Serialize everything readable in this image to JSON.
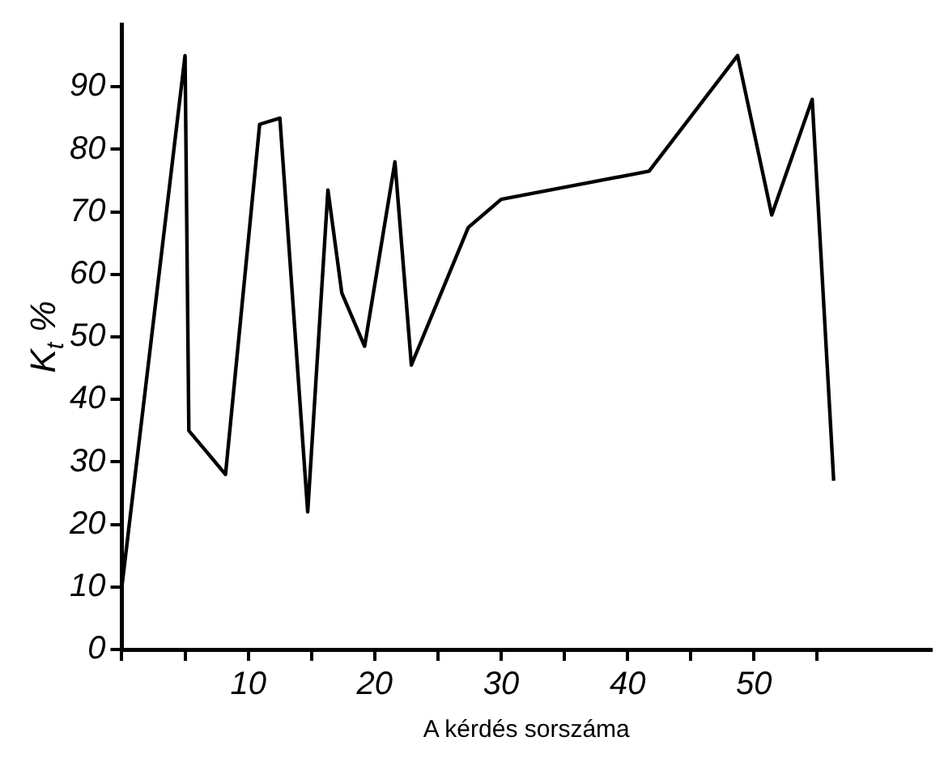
{
  "chart_data": {
    "type": "line",
    "xlabel": "A kérdés sorszáma",
    "ylabel": "K$_{t}$ %",
    "x": [
      0,
      5,
      5.3,
      8.2,
      10.9,
      12.5,
      14.7,
      16.3,
      17.4,
      19.2,
      21.6,
      22.9,
      27.4,
      30,
      41.7,
      48.7,
      51.4,
      54.6,
      56.3
    ],
    "series": [
      {
        "color": "#000000",
        "values": [
          10,
          95,
          35,
          28,
          84,
          85,
          22,
          73.5,
          57,
          48.5,
          78,
          45.5,
          67.5,
          72,
          76.5,
          95,
          69.5,
          88,
          27
        ]
      }
    ],
    "xlim": [
      0,
      64
    ],
    "ylim": [
      0,
      100
    ],
    "xticks": [
      {
        "value": 0,
        "label": null
      },
      {
        "value": 5,
        "label": null
      },
      10,
      {
        "value": 15,
        "label": null
      },
      20,
      {
        "value": 25,
        "label": null
      },
      30,
      {
        "value": 35,
        "label": null
      },
      40,
      {
        "value": 45,
        "label": null
      },
      50,
      {
        "value": 55,
        "label": null
      }
    ],
    "yticks": [
      0,
      10,
      20,
      30,
      40,
      50,
      60,
      70,
      80,
      90
    ],
    "grid": false,
    "legend": false,
    "marker": "none",
    "line_style": "solid"
  }
}
